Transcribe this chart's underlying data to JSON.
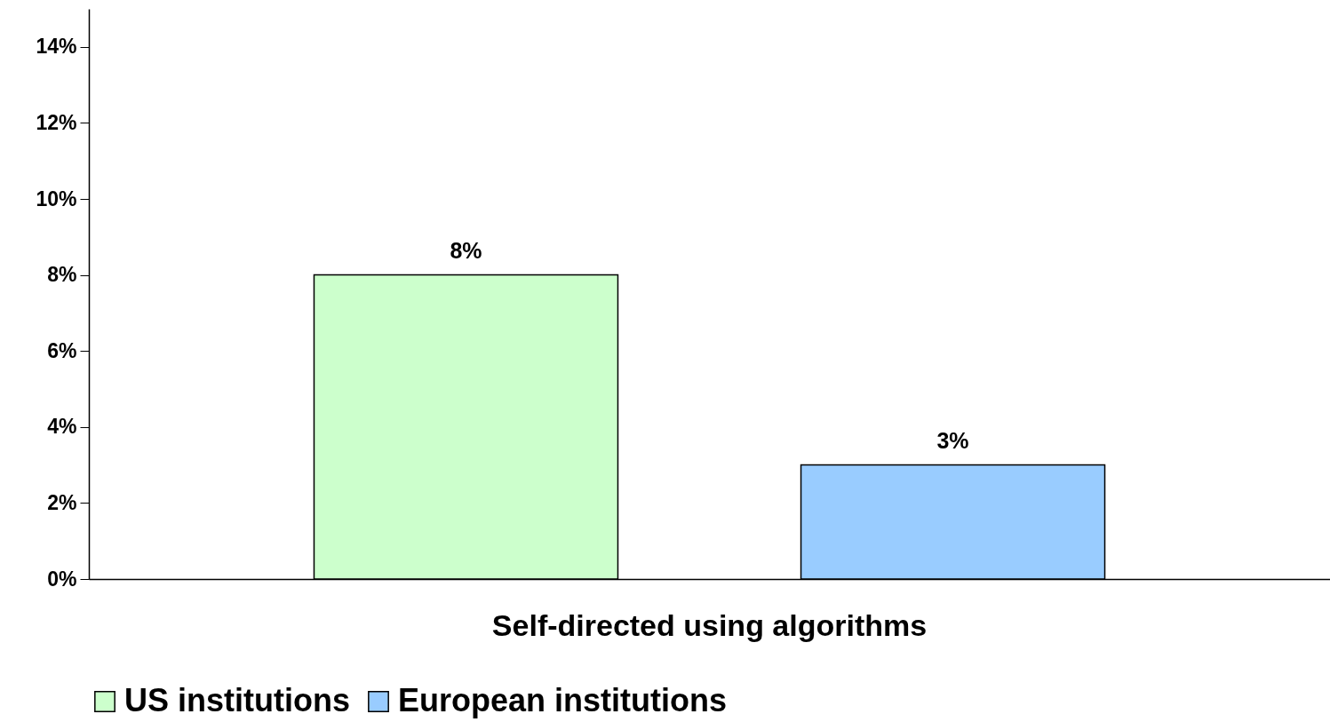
{
  "chart_data": {
    "type": "bar",
    "categories": [
      "Self-directed using algorithms"
    ],
    "series": [
      {
        "name": "US institutions",
        "color": "#ccffcc",
        "values": [
          8
        ],
        "value_labels": [
          "8%"
        ]
      },
      {
        "name": "European institutions",
        "color": "#99ccff",
        "values": [
          3
        ],
        "value_labels": [
          "3%"
        ]
      }
    ],
    "ylim": [
      0,
      15
    ],
    "yticks": [
      {
        "value": 0,
        "label": "0%"
      },
      {
        "value": 2,
        "label": "2%"
      },
      {
        "value": 4,
        "label": "4%"
      },
      {
        "value": 6,
        "label": "6%"
      },
      {
        "value": 8,
        "label": "8%"
      },
      {
        "value": 10,
        "label": "10%"
      },
      {
        "value": 12,
        "label": "12%"
      },
      {
        "value": 14,
        "label": "14%"
      }
    ],
    "grid": false,
    "legend": "bottom"
  }
}
